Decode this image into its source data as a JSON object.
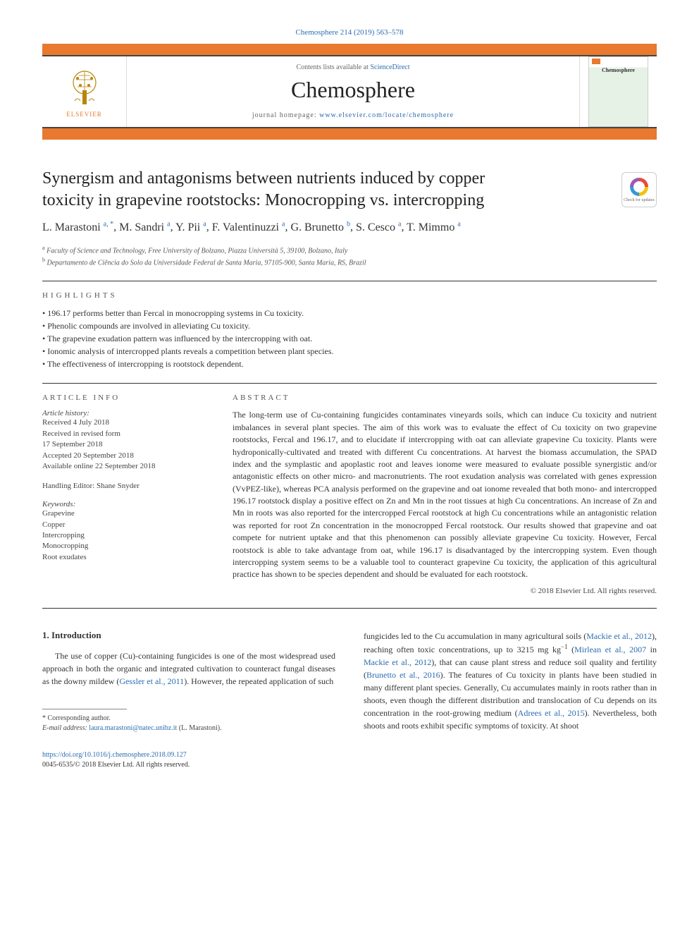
{
  "top_citation": "Chemosphere 214 (2019) 563–578",
  "header": {
    "contents_label": "Contents lists available at",
    "contents_link": "ScienceDirect",
    "journal_name": "Chemosphere",
    "homepage_label": "journal homepage:",
    "homepage_url": "www.elsevier.com/locate/chemosphere",
    "elsevier_label": "ELSEVIER",
    "cover_title": "Chemosphere",
    "crossmark_label": "Check for updates"
  },
  "article": {
    "title_line1": "Synergism and antagonisms between nutrients induced by copper",
    "title_line2": "toxicity in grapevine rootstocks: Monocropping vs. intercropping",
    "authors_raw": "L. Marastoni",
    "authors": [
      {
        "name": "L. Marastoni",
        "sup": "a, *"
      },
      {
        "name": "M. Sandri",
        "sup": "a"
      },
      {
        "name": "Y. Pii",
        "sup": "a"
      },
      {
        "name": "F. Valentinuzzi",
        "sup": "a"
      },
      {
        "name": "G. Brunetto",
        "sup": "b"
      },
      {
        "name": "S. Cesco",
        "sup": "a"
      },
      {
        "name": "T. Mimmo",
        "sup": "a"
      }
    ],
    "affiliations": [
      {
        "sup": "a",
        "text": "Faculty of Science and Technology, Free University of Bolzano, Piazza Università 5, 39100, Bolzano, Italy"
      },
      {
        "sup": "b",
        "text": "Departamento de Ciência do Solo da Universidade Federal de Santa Maria, 97105-900, Santa Maria, RS, Brazil"
      }
    ]
  },
  "highlights": {
    "heading": "HIGHLIGHTS",
    "items": [
      "196.17 performs better than Fercal in monocropping systems in Cu toxicity.",
      "Phenolic compounds are involved in alleviating Cu toxicity.",
      "The grapevine exudation pattern was influenced by the intercropping with oat.",
      "Ionomic analysis of intercropped plants reveals a competition between plant species.",
      "The effectiveness of intercropping is rootstock dependent."
    ]
  },
  "info": {
    "heading": "ARTICLE INFO",
    "history_label": "Article history:",
    "history": [
      "Received 4 July 2018",
      "Received in revised form",
      "17 September 2018",
      "Accepted 20 September 2018",
      "Available online 22 September 2018"
    ],
    "handling_editor": "Handling Editor: Shane Snyder",
    "keywords_label": "Keywords:",
    "keywords": [
      "Grapevine",
      "Copper",
      "Intercropping",
      "Monocropping",
      "Root exudates"
    ]
  },
  "abstract": {
    "heading": "ABSTRACT",
    "text": "The long-term use of Cu-containing fungicides contaminates vineyards soils, which can induce Cu toxicity and nutrient imbalances in several plant species. The aim of this work was to evaluate the effect of Cu toxicity on two grapevine rootstocks, Fercal and 196.17, and to elucidate if intercropping with oat can alleviate grapevine Cu toxicity. Plants were hydroponically-cultivated and treated with different Cu concentrations. At harvest the biomass accumulation, the SPAD index and the symplastic and apoplastic root and leaves ionome were measured to evaluate possible synergistic and/or antagonistic effects on other micro- and macronutrients. The root exudation analysis was correlated with genes expression (VvPEZ-like), whereas PCA analysis performed on the grapevine and oat ionome revealed that both mono- and intercropped 196.17 rootstock display a positive effect on Zn and Mn in the root tissues at high Cu concentrations. An increase of Zn and Mn in roots was also reported for the intercropped Fercal rootstock at high Cu concentrations while an antagonistic relation was reported for root Zn concentration in the monocropped Fercal rootstock. Our results showed that grapevine and oat compete for nutrient uptake and that this phenomenon can possibly alleviate grapevine Cu toxicity. However, Fercal rootstock is able to take advantage from oat, while 196.17 is disadvantaged by the intercropping system. Even though intercropping system seems to be a valuable tool to counteract grapevine Cu toxicity, the application of this agricultural practice has shown to be species dependent and should be evaluated for each rootstock.",
    "copyright": "© 2018 Elsevier Ltd. All rights reserved."
  },
  "introduction": {
    "heading": "1. Introduction",
    "left_para": "The use of copper (Cu)-containing fungicides is one of the most widespread used approach in both the organic and integrated cultivation to counteract fungal diseases as the downy mildew (",
    "left_cite1": "Gessler et al., 2011",
    "left_para2": "). However, the repeated application of such",
    "right_pre": "fungicides led to the Cu accumulation in many agricultural soils (",
    "right_cite1": "Mackie et al., 2012",
    "right_mid1": "), reaching often toxic concentrations, up to 3215 mg kg",
    "sup_minus1": "−1",
    "right_mid2": " (",
    "right_cite2": "Mirlean et al., 2007",
    "right_in": " in ",
    "right_cite3": "Mackie et al., 2012",
    "right_mid3": "), that can cause plant stress and reduce soil quality and fertility (",
    "right_cite4": "Brunetto et al., 2016",
    "right_mid4": "). The features of Cu toxicity in plants have been studied in many different plant species. Generally, Cu accumulates mainly in roots rather than in shoots, even though the different distribution and translocation of Cu depends on its concentration in the root-growing medium (",
    "right_cite5": "Adrees et al., 2015",
    "right_tail": "). Nevertheless, both shoots and roots exhibit specific symptoms of toxicity. At shoot"
  },
  "footnote": {
    "corr_label": "* Corresponding author.",
    "email_label": "E-mail address:",
    "email": "laura.marastoni@natec.unibz.it",
    "email_name": "(L. Marastoni)."
  },
  "doi": {
    "url": "https://doi.org/10.1016/j.chemosphere.2018.09.127",
    "issn_line": "0045-6535/© 2018 Elsevier Ltd. All rights reserved."
  },
  "colors": {
    "orange": "#e8792e",
    "link": "#2b6cb0",
    "rule": "#333333"
  }
}
